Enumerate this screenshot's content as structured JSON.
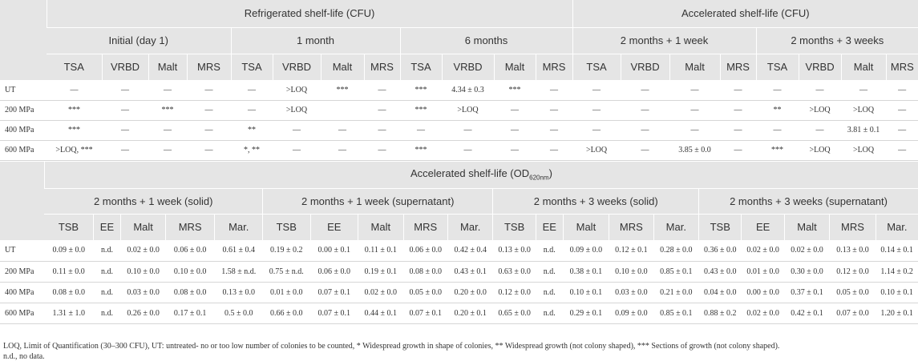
{
  "table1": {
    "title": "Refrigerated shelf-life (CFU)",
    "title_acc": "Accelerated shelf-life (CFU)",
    "periods": [
      "Initial (day 1)",
      "1 month",
      "6 months",
      "2 months + 1 week",
      "2 months + 3 weeks"
    ],
    "media": [
      "TSA",
      "VRBD",
      "Malt",
      "MRS",
      "TSA",
      "VRBD",
      "Malt",
      "MRS",
      "TSA",
      "VRBD",
      "Malt",
      "MRS",
      "TSA",
      "VRBD",
      "Malt",
      "MRS",
      "TSA",
      "VRBD",
      "Malt",
      "MRS"
    ],
    "rows": [
      {
        "label": "UT",
        "cells": [
          "—",
          "—",
          "—",
          "—",
          "—",
          ">LOQ",
          "***",
          "—",
          "***",
          "4.34 ± 0.3",
          "***",
          "—",
          "—",
          "—",
          "—",
          "—",
          "—",
          "—",
          "—",
          "—"
        ]
      },
      {
        "label": "200 MPa",
        "cells": [
          "***",
          "—",
          "***",
          "—",
          "—",
          ">LOQ",
          "",
          "—",
          "***",
          ">LOQ",
          "—",
          "—",
          "—",
          "—",
          "—",
          "—",
          "**",
          ">LOQ",
          ">LOQ",
          "—"
        ]
      },
      {
        "label": "400 MPa",
        "cells": [
          "***",
          "—",
          "—",
          "—",
          "**",
          "—",
          "—",
          "—",
          "—",
          "—",
          "—",
          "—",
          "—",
          "—",
          "—",
          "—",
          "—",
          "—",
          "3.81 ± 0.1",
          "—"
        ]
      },
      {
        "label": "600 MPa",
        "cells": [
          ">LOQ, ***",
          "—",
          "—",
          "—",
          "*, **",
          "—",
          "—",
          "—",
          "***",
          "—",
          "—",
          "—",
          ">LOQ",
          "—",
          "3.85 ± 0.0",
          "—",
          "***",
          ">LOQ",
          ">LOQ",
          "—"
        ]
      }
    ]
  },
  "table2": {
    "title_prefix": "Accelerated shelf-life (OD",
    "title_sub": "620nm",
    "title_suffix": ")",
    "groups": [
      "2 months + 1 week (solid)",
      "2 months + 1 week (supernatant)",
      "2 months + 3 weeks (solid)",
      "2 months + 3 weeks (supernatant)"
    ],
    "media": [
      "TSB",
      "EE",
      "Malt",
      "MRS",
      "Mar.",
      "TSB",
      "EE",
      "Malt",
      "MRS",
      "Mar.",
      "TSB",
      "EE",
      "Malt",
      "MRS",
      "Mar.",
      "TSB",
      "EE",
      "Malt",
      "MRS",
      "Mar."
    ],
    "rows": [
      {
        "label": "UT",
        "cells": [
          "0.09 ± 0.0",
          "n.d.",
          "0.02 ± 0.0",
          "0.06 ± 0.0",
          "0.61 ± 0.4",
          "0.19 ± 0.2",
          "0.00 ± 0.1",
          "0.11 ± 0.1",
          "0.06 ± 0.0",
          "0.42 ± 0.4",
          "0.13 ± 0.0",
          "n.d.",
          "0.09 ± 0.0",
          "0.12 ± 0.1",
          "0.28 ± 0.0",
          "0.36 ± 0.0",
          "0.02 ± 0.0",
          "0.02 ± 0.0",
          "0.13 ± 0.0",
          "0.14 ± 0.1"
        ]
      },
      {
        "label": "200 MPa",
        "cells": [
          "0.11 ± 0.0",
          "n.d.",
          "0.10 ± 0.0",
          "0.10 ± 0.0",
          "1.58 ± n.d.",
          "0.75 ± n.d.",
          "0.06 ± 0.0",
          "0.19 ± 0.1",
          "0.08 ± 0.0",
          "0.43 ± 0.1",
          "0.63 ± 0.0",
          "n.d.",
          "0.38 ± 0.1",
          "0.10 ± 0.0",
          "0.85 ± 0.1",
          "0.43 ± 0.0",
          "0.01 ± 0.0",
          "0.30 ± 0.0",
          "0.12 ± 0.0",
          "1.14 ± 0.2"
        ]
      },
      {
        "label": "400 MPa",
        "cells": [
          "0.08 ± 0.0",
          "n.d.",
          "0.03 ± 0.0",
          "0.08 ± 0.0",
          "0.13 ± 0.0",
          "0.01 ± 0.0",
          "0.07 ± 0.1",
          "0.02 ± 0.0",
          "0.05 ± 0.0",
          "0.20 ± 0.0",
          "0.12 ± 0.0",
          "n.d.",
          "0.10 ± 0.1",
          "0.03 ± 0.0",
          "0.21 ± 0.0",
          "0.04 ± 0.0",
          "0.00 ± 0.0",
          "0.37 ± 0.1",
          "0.05 ± 0.0",
          "0.10 ± 0.1"
        ]
      },
      {
        "label": "600 MPa",
        "cells": [
          "1.31 ± 1.0",
          "n.d.",
          "0.26 ± 0.0",
          "0.17 ± 0.1",
          "0.5 ± 0.0",
          "0.66 ± 0.0",
          "0.07 ± 0.1",
          "0.44 ± 0.1",
          "0.07 ± 0.1",
          "0.20 ± 0.1",
          "0.65 ± 0.0",
          "n.d.",
          "0.29 ± 0.1",
          "0.09 ± 0.0",
          "0.85 ± 0.1",
          "0.88 ± 0.2",
          "0.02 ± 0.0",
          "0.42 ± 0.1",
          "0.07 ± 0.0",
          "1.20 ± 0.1"
        ]
      }
    ]
  },
  "footnotes": {
    "line1": "LOQ, Limit of Quantification (30–300 CFU), UT: untreated- no or too low number of colonies to be counted, * Widespread growth in shape of colonies, ** Widespread growth (not colony shaped), *** Sections of growth (not colony shaped).",
    "line2": "n.d., no data."
  }
}
